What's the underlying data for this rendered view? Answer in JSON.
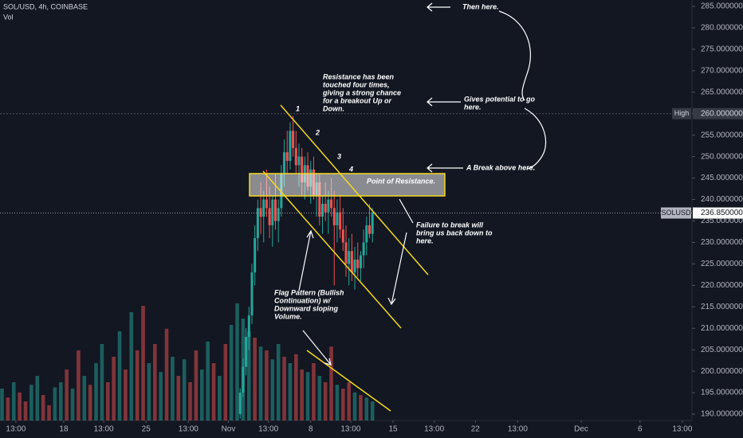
{
  "chart_data": {
    "type": "candlestick",
    "title": "SOL/USD, 4h, COINBASE",
    "subtitle": "Vol",
    "x": [
      33,
      33.25,
      33.5,
      33.75,
      34,
      34.25,
      34.5,
      34.75,
      35,
      35.25,
      35.5,
      35.75,
      36,
      36.25,
      36.5,
      36.75,
      37,
      37.25,
      37.5,
      37.75,
      38,
      38.25,
      38.5,
      38.75,
      39,
      39.25,
      39.5,
      39.75,
      40,
      40.25,
      40.5,
      40.75,
      41,
      41.25,
      41.5,
      41.75,
      42,
      42.25,
      42.5,
      42.75,
      43,
      43.25,
      43.5,
      43.75,
      44,
      44.25
    ],
    "open": [
      190,
      195,
      201,
      208,
      213,
      223,
      231,
      238,
      236,
      240,
      238,
      234,
      240,
      235,
      238,
      246,
      251,
      249,
      256,
      252,
      248,
      250,
      244,
      248,
      243,
      247,
      241,
      244,
      236,
      239,
      237,
      240,
      238,
      234,
      237,
      233,
      230,
      225,
      228,
      223,
      226,
      224,
      227,
      230,
      234,
      232
    ],
    "high": [
      196,
      203,
      210,
      215,
      225,
      234,
      240,
      244,
      242,
      247,
      243,
      241,
      246,
      240,
      248,
      254,
      256,
      258,
      259.5,
      256,
      253,
      252,
      250,
      251,
      249,
      250,
      246,
      246,
      241,
      244,
      242,
      245,
      242,
      240,
      241,
      238,
      234,
      231,
      232,
      229,
      230,
      228,
      233,
      236,
      239,
      238
    ],
    "low": [
      189,
      194,
      199,
      205,
      211,
      220,
      228,
      232,
      230,
      236,
      231,
      229,
      233,
      230,
      236,
      243,
      246,
      247,
      250,
      246,
      243,
      241,
      240,
      242,
      239,
      240,
      236,
      234,
      232,
      235,
      232,
      236,
      220,
      230,
      231,
      228,
      222,
      220,
      221,
      219,
      222,
      221,
      224,
      227,
      231,
      230
    ],
    "close": [
      195,
      201,
      208,
      213,
      223,
      231,
      238,
      236,
      240,
      238,
      234,
      240,
      235,
      238,
      246,
      251,
      249,
      256,
      252,
      248,
      250,
      244,
      248,
      243,
      247,
      241,
      244,
      236,
      239,
      237,
      240,
      238,
      234,
      237,
      233,
      230,
      225,
      228,
      223,
      226,
      224,
      227,
      230,
      234,
      232,
      236.85
    ],
    "up_color": "#26a69a",
    "down_color": "#ef5350",
    "volume": {
      "ylim": [
        0,
        100
      ],
      "x": [
        12.75,
        13.25,
        13.75,
        14.25,
        14.75,
        15.25,
        15.75,
        16.25,
        16.75,
        17.25,
        17.75,
        18.25,
        18.75,
        19.25,
        19.75,
        20.25,
        20.75,
        21.25,
        21.75,
        22.25,
        22.75,
        23.25,
        23.75,
        24.25,
        24.75,
        25.25,
        25.75,
        26.25,
        26.75,
        27.25,
        27.75,
        28.25,
        28.75,
        29.25,
        29.75,
        30.25,
        30.75,
        31.25,
        31.75,
        32.25,
        32.75,
        33.25,
        33.75,
        34.25,
        34.75,
        35.25,
        35.75,
        36.25,
        36.75,
        37.25,
        37.75,
        38.25,
        38.75,
        39.25,
        39.75,
        40.25,
        40.75,
        41.25,
        41.75,
        42.25,
        42.75,
        43.25,
        43.75,
        44.25
      ],
      "values": [
        25,
        18,
        30,
        22,
        15,
        28,
        35,
        20,
        12,
        26,
        30,
        40,
        25,
        55,
        35,
        28,
        45,
        60,
        30,
        50,
        70,
        40,
        85,
        55,
        90,
        45,
        60,
        38,
        72,
        50,
        35,
        48,
        30,
        55,
        40,
        62,
        45,
        35,
        60,
        75,
        92,
        80,
        70,
        65,
        58,
        55,
        48,
        60,
        50,
        45,
        52,
        40,
        38,
        45,
        35,
        30,
        58,
        28,
        25,
        30,
        22,
        20,
        18,
        15
      ],
      "up": [
        true,
        false,
        true,
        false,
        false,
        true,
        true,
        false,
        false,
        true,
        true,
        false,
        true,
        false,
        true,
        false,
        true,
        true,
        false,
        false,
        true,
        false,
        true,
        false,
        false,
        true,
        false,
        true,
        false,
        true,
        false,
        true,
        false,
        false,
        true,
        true,
        false,
        true,
        false,
        true,
        true,
        true,
        true,
        false,
        true,
        false,
        true,
        true,
        false,
        true,
        false,
        false,
        true,
        false,
        true,
        false,
        false,
        true,
        false,
        false,
        true,
        false,
        true,
        true
      ]
    },
    "xlim": [
      12.58,
      71.42
    ],
    "xticks": [
      {
        "value": 13.93,
        "label": "13:00"
      },
      18,
      {
        "value": 21.4,
        "label": "13:00"
      },
      25,
      {
        "value": 28.6,
        "label": "13:00"
      },
      {
        "value": 32,
        "label": "Nov"
      },
      {
        "value": 35.4,
        "label": "13:00"
      },
      {
        "value": 39,
        "label": "8"
      },
      {
        "value": 42.4,
        "label": "13:00"
      },
      {
        "value": 46,
        "label": "15"
      },
      {
        "value": 49.5,
        "label": "13:00"
      },
      {
        "value": 53,
        "label": "22"
      },
      {
        "value": 56.6,
        "label": "13:00"
      },
      {
        "value": 62,
        "label": "Dec"
      },
      {
        "value": 67,
        "label": "6"
      },
      {
        "value": 70.6,
        "label": "13:00"
      }
    ],
    "ylim": [
      188.52,
      286.48
    ],
    "yticks": [
      {
        "value": 190,
        "label": "190.00000000"
      },
      {
        "value": 195,
        "label": "195.00000000"
      },
      {
        "value": 200,
        "label": "200.00000000"
      },
      {
        "value": 205,
        "label": "205.00000000"
      },
      {
        "value": 210,
        "label": "210.00000000"
      },
      {
        "value": 215,
        "label": "215.00000000"
      },
      {
        "value": 220,
        "label": "220.00000000"
      },
      {
        "value": 225,
        "label": "225.00000000"
      },
      {
        "value": 230,
        "label": "230.00000000"
      },
      {
        "value": 235,
        "label": "235.00000000"
      },
      {
        "value": 240,
        "label": "240.00000000"
      },
      {
        "value": 245,
        "label": "245.00000000"
      },
      {
        "value": 250,
        "label": "250.00000000"
      },
      {
        "value": 255,
        "label": "255.00000000"
      },
      {
        "value": 260,
        "label": "260.00000000"
      },
      {
        "value": 265,
        "label": "265.00000000"
      },
      {
        "value": 270,
        "label": "270.00000000"
      },
      {
        "value": 275,
        "label": "275.00000000"
      },
      {
        "value": 280,
        "label": "280.00000000"
      },
      {
        "value": 285,
        "label": "285.00000000"
      }
    ],
    "grid": false,
    "price_lines": [
      {
        "name": "High",
        "value": 260,
        "label": "260.00000000"
      },
      {
        "name": "SOLUSD",
        "value": 236.85,
        "label": "236.85000000"
      }
    ]
  },
  "annotations": {
    "then_here": "Then here.",
    "resistance_note": [
      "Resistance has been",
      "touched four times,",
      "giving a strong chance",
      "for a breakout Up or",
      "Down."
    ],
    "gives_potential": [
      "Gives potential to go",
      "here."
    ],
    "break_above": "A Break above here.",
    "point_of_resistance": "Point of Resistance.",
    "failure_note": [
      "Failure to break will",
      "bring us back down to",
      "here."
    ],
    "flag_note": [
      "Flag Pattern (Bullish",
      "Continuation) w/",
      "Downward sloping",
      "Volume."
    ],
    "touches": [
      "1",
      "2",
      "3",
      "4"
    ]
  }
}
